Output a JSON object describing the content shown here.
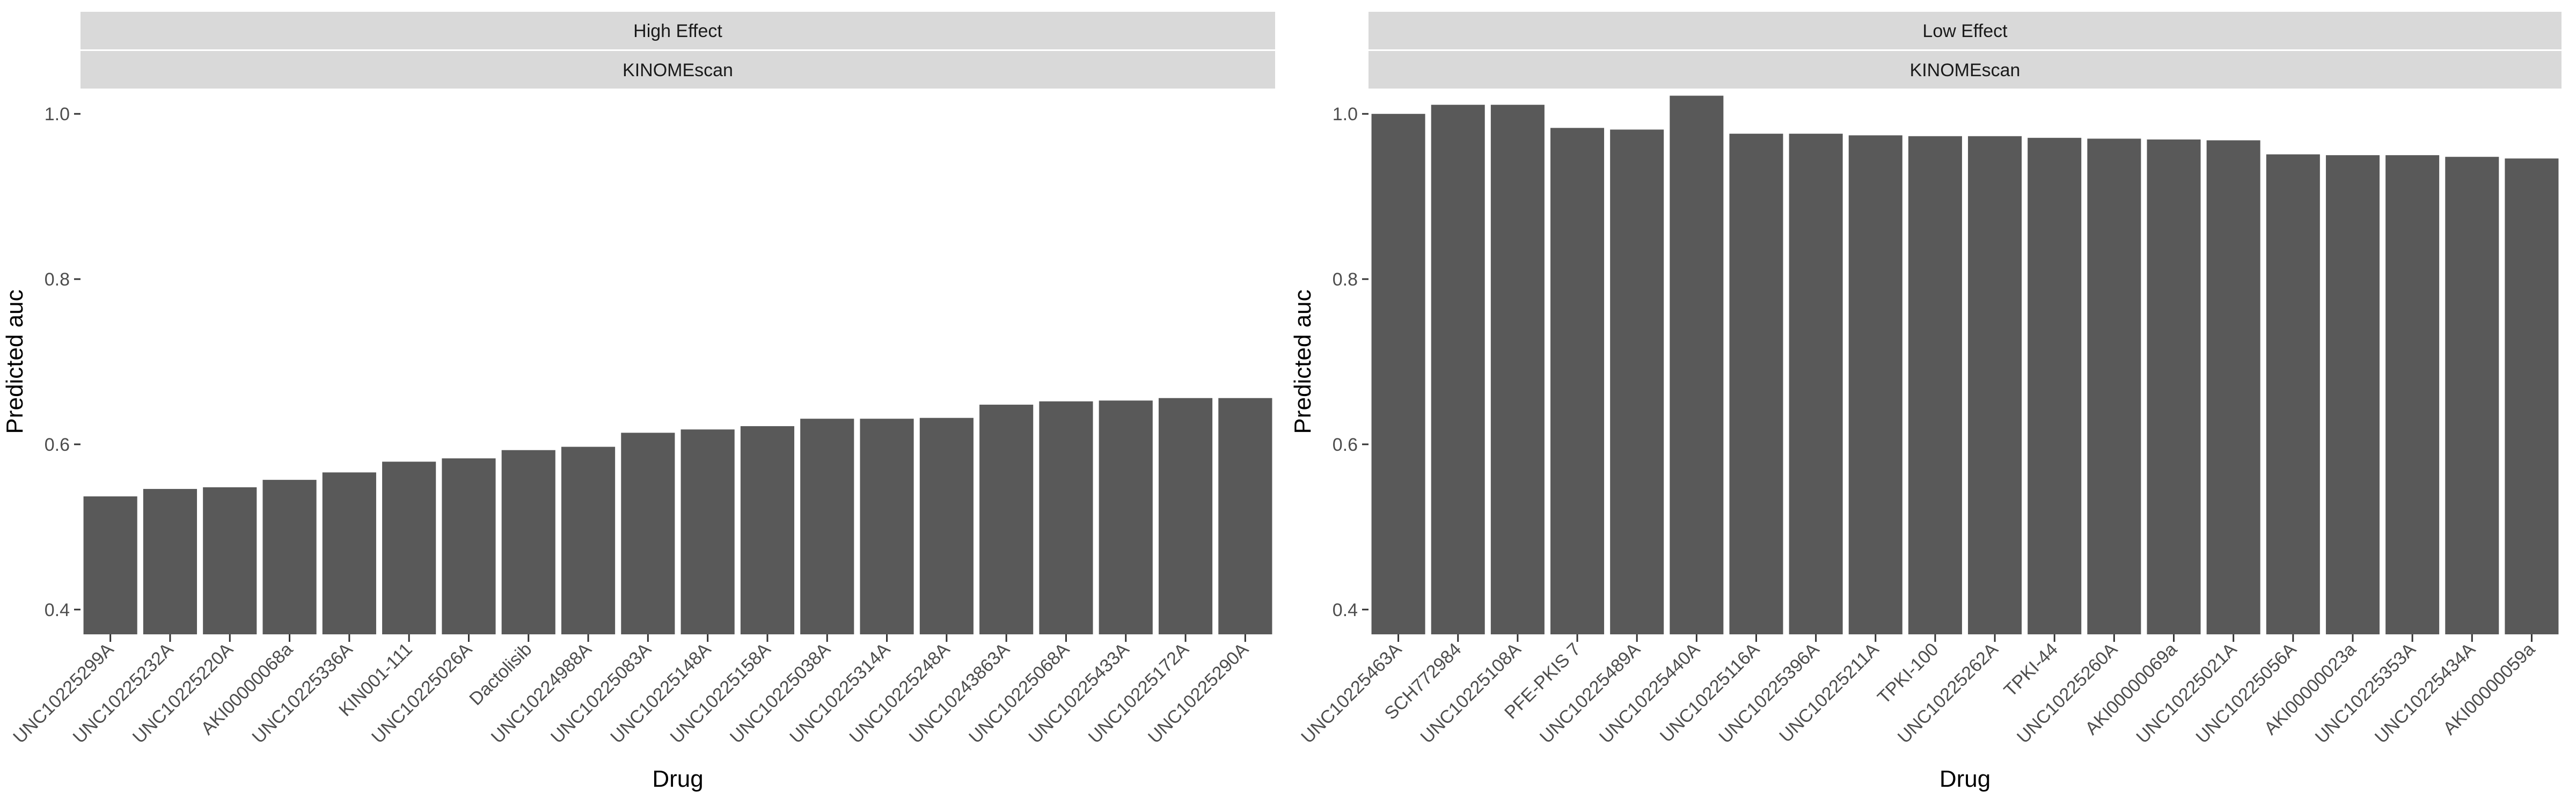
{
  "chart_data": [
    {
      "type": "bar",
      "strip_labels": [
        "High Effect",
        "KINOMEscan"
      ],
      "xlabel": "Drug",
      "ylabel": "Predicted auc",
      "ylim": [
        0.37,
        1.03
      ],
      "yticks": [
        "0.4",
        "0.6",
        "0.8",
        "1.0"
      ],
      "ytick_values": [
        0.4,
        0.6,
        0.8,
        1.0
      ],
      "bar_color": "#595959",
      "panel_background": "#ffffff",
      "strip_color": "#d9d9d9",
      "grid": false,
      "categories": [
        "UNC10225299A",
        "UNC10225232A",
        "UNC10225220A",
        "AKI00000068a",
        "UNC10225336A",
        "KIN001-111",
        "UNC10225026A",
        "Dactolisib",
        "UNC10224988A",
        "UNC10225083A",
        "UNC10225148A",
        "UNC10225158A",
        "UNC10225038A",
        "UNC10225314A",
        "UNC10225248A",
        "UNC10243863A",
        "UNC10225068A",
        "UNC10225433A",
        "UNC10225172A",
        "UNC10225290A"
      ],
      "values": [
        0.537,
        0.546,
        0.548,
        0.557,
        0.566,
        0.579,
        0.583,
        0.593,
        0.597,
        0.614,
        0.618,
        0.622,
        0.631,
        0.631,
        0.632,
        0.648,
        0.652,
        0.653,
        0.656,
        0.656
      ]
    },
    {
      "type": "bar",
      "strip_labels": [
        "Low Effect",
        "KINOMEscan"
      ],
      "xlabel": "Drug",
      "ylabel": "Predicted auc",
      "ylim": [
        0.37,
        1.03
      ],
      "yticks": [
        "0.4",
        "0.6",
        "0.8",
        "1.0"
      ],
      "ytick_values": [
        0.4,
        0.6,
        0.8,
        1.0
      ],
      "bar_color": "#595959",
      "panel_background": "#ffffff",
      "strip_color": "#d9d9d9",
      "grid": false,
      "categories": [
        "UNC10225463A",
        "SCH772984",
        "UNC10225108A",
        "PFE-PKIS 7",
        "UNC10225489A",
        "UNC10225440A",
        "UNC10225116A",
        "UNC10225396A",
        "UNC10225211A",
        "TPKI-100",
        "UNC10225262A",
        "TPKI-44",
        "UNC10225260A",
        "AKI00000069a",
        "UNC10225021A",
        "UNC10225056A",
        "AKI00000023a",
        "UNC10225353A",
        "UNC10225434A",
        "AKI00000059a"
      ],
      "values": [
        1.0,
        1.011,
        1.011,
        0.983,
        0.981,
        1.022,
        0.976,
        0.976,
        0.974,
        0.973,
        0.973,
        0.971,
        0.97,
        0.969,
        0.968,
        0.951,
        0.95,
        0.95,
        0.948,
        0.946
      ]
    }
  ]
}
